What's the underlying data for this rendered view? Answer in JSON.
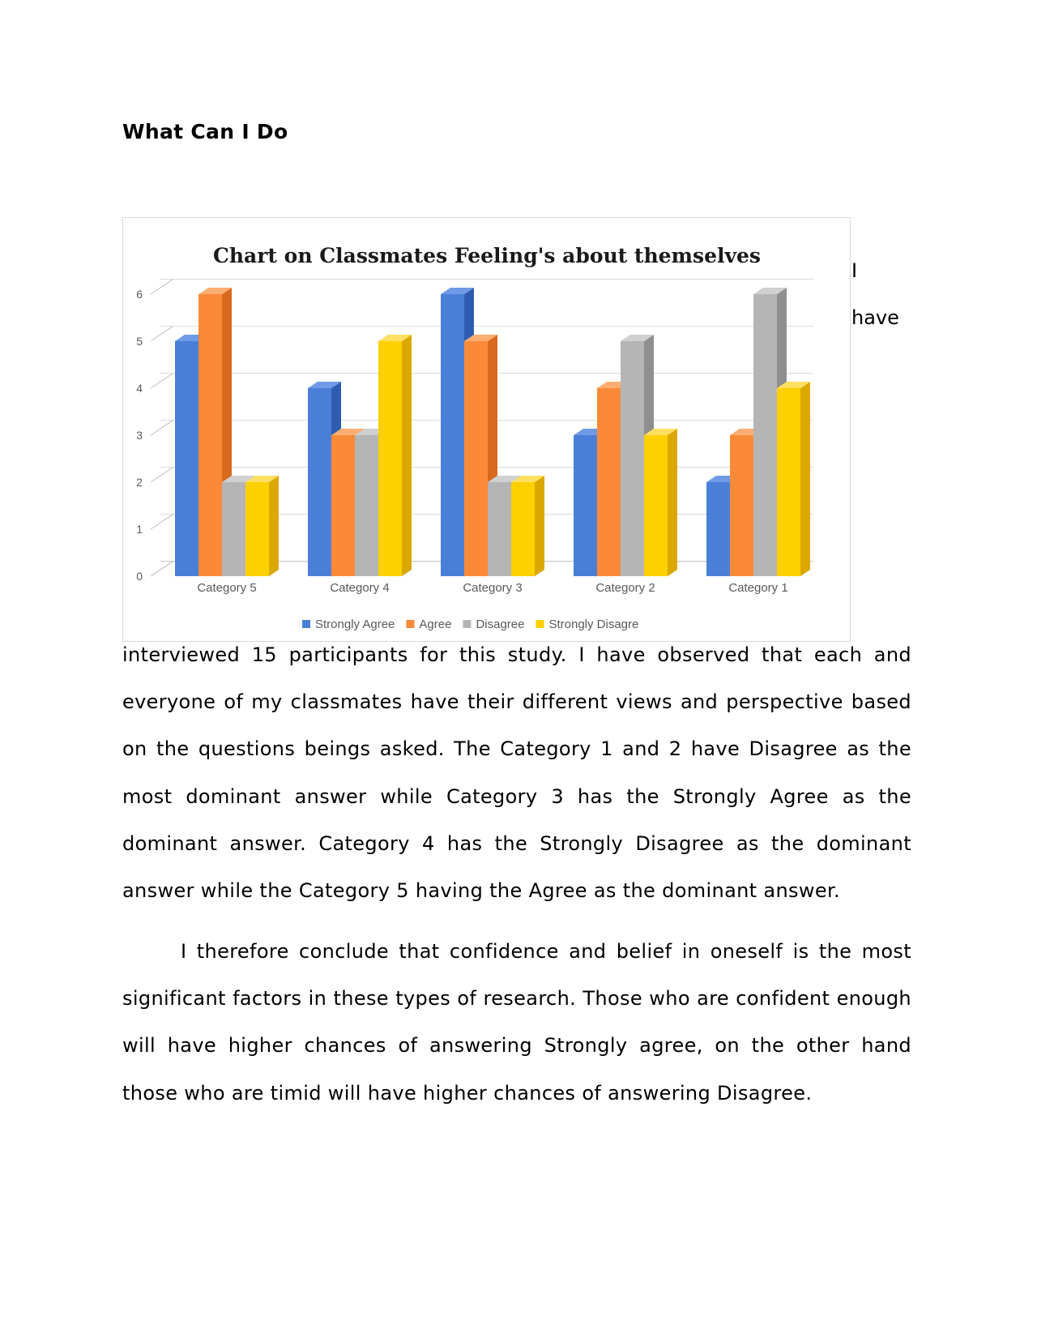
{
  "heading": "What Can I Do",
  "hidden_fragments": [
    "I",
    "have"
  ],
  "paragraphs": [
    "interviewed 15 participants for this study. I have observed that each and everyone of my classmates have their different views and perspective based on the questions beings asked. The Category 1 and 2 have Disagree as the most dominant answer while Category 3 has the Strongly Agree as the dominant answer. Category 4 has the Strongly Disagree as the dominant answer while the Category 5 having the Agree as the dominant answer.",
    "I therefore conclude that confidence and belief in oneself is the most significant factors in these types of research. Those who are confident enough will have higher chances of answering Strongly agree, on the other hand those who are timid will have higher chances of answering Disagree."
  ],
  "chart_data": {
    "type": "bar",
    "style": "3d-clustered-column",
    "title": "Chart on Classmates Feeling's about themselves",
    "categories": [
      "Category 5",
      "Category 4",
      "Category 3",
      "Category 2",
      "Category 1"
    ],
    "series": [
      {
        "name": "Strongly Agree",
        "values": [
          5,
          4,
          6,
          3,
          2
        ],
        "color": "#4a7fd8",
        "side": "#2e5cb0",
        "top": "#6f9ae6"
      },
      {
        "name": "Agree",
        "values": [
          6,
          3,
          5,
          4,
          3
        ],
        "color": "#fa8a38",
        "side": "#d86a1e",
        "top": "#fcae72"
      },
      {
        "name": "Disagree",
        "values": [
          2,
          3,
          2,
          5,
          6
        ],
        "color": "#b5b5b5",
        "side": "#8f8f8f",
        "top": "#d0d0d0"
      },
      {
        "name": "Strongly Disagre",
        "values": [
          2,
          5,
          2,
          3,
          4
        ],
        "color": "#ffd000",
        "side": "#dba800",
        "top": "#ffe060"
      }
    ],
    "yticks": [
      "0",
      "1",
      "2",
      "3",
      "4",
      "5",
      "6"
    ],
    "ylim": [
      0,
      6
    ],
    "grid": true,
    "legend_position": "bottom"
  }
}
